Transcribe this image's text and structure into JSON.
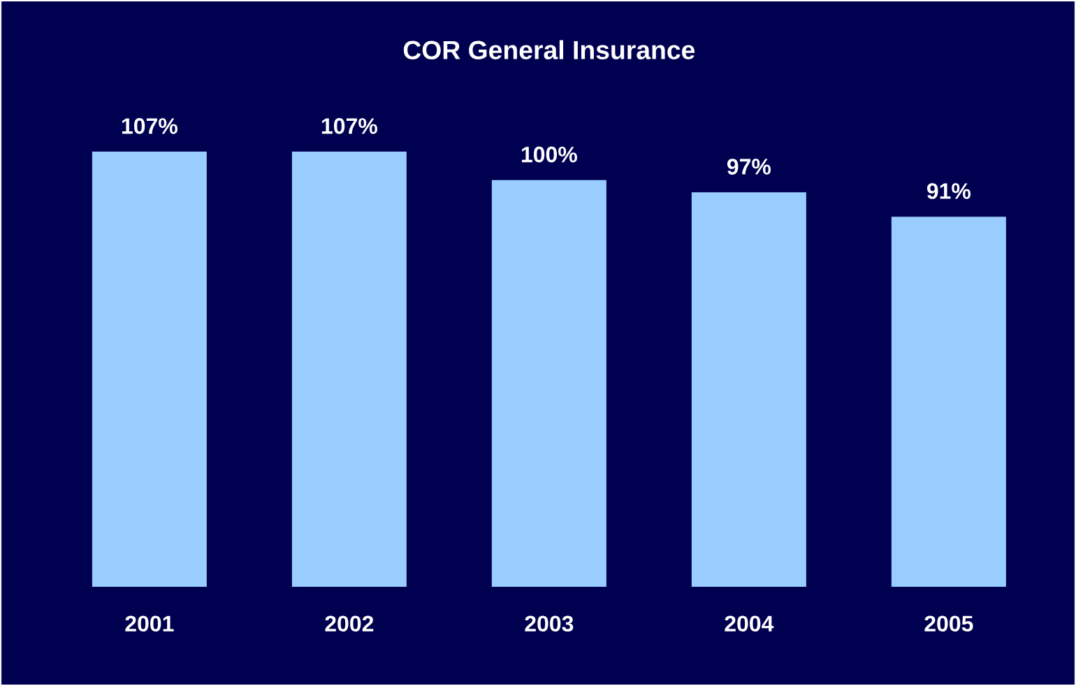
{
  "chart_data": {
    "type": "bar",
    "title": "COR General Insurance",
    "categories": [
      "2001",
      "2002",
      "2003",
      "2004",
      "2005"
    ],
    "values": [
      107,
      107,
      100,
      97,
      91
    ],
    "value_labels": [
      "107%",
      "107%",
      "100%",
      "97%",
      "91%"
    ],
    "color": "#99ccff",
    "tick_labels": "x"
  }
}
